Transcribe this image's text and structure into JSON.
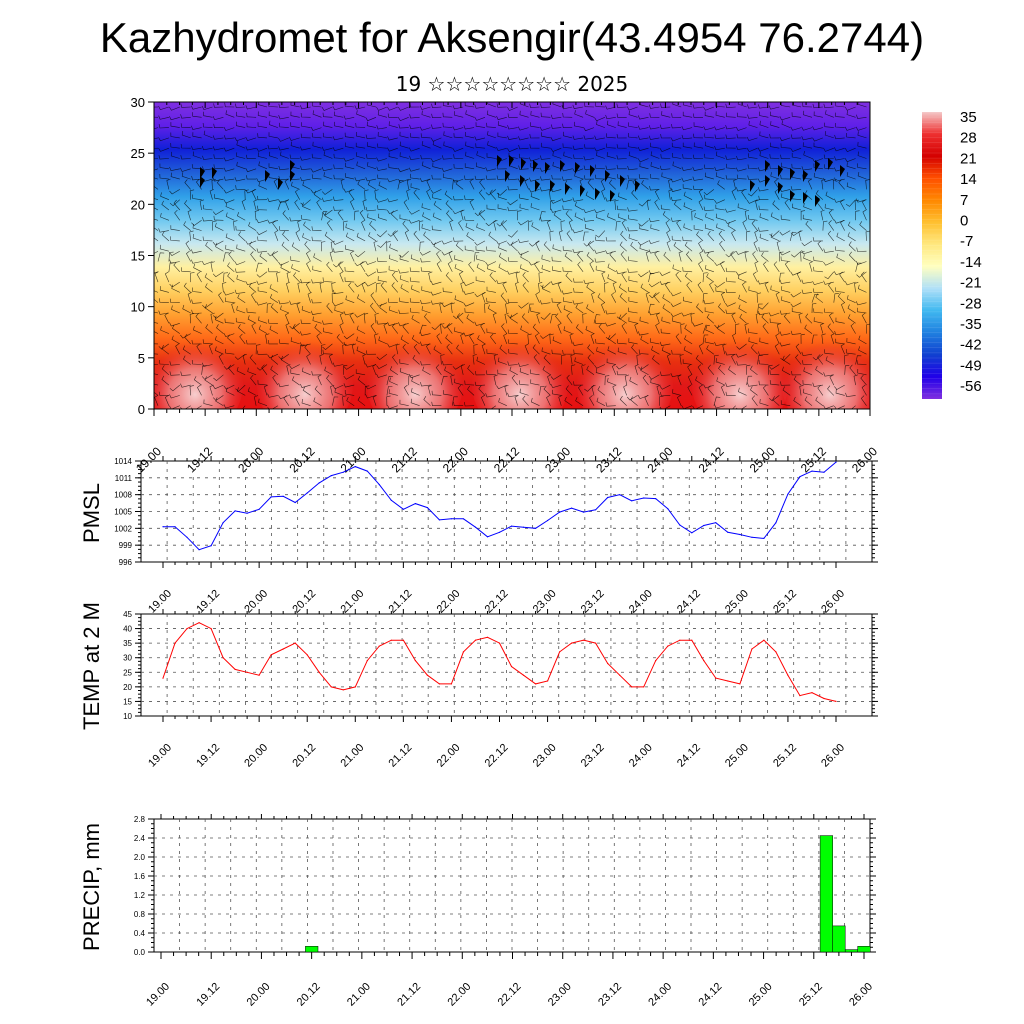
{
  "page": {
    "title": "Kazhydromet for Aksengir(43.4954 76.2744)",
    "subtitle": "19 ☆☆☆☆☆☆☆☆ 2025"
  },
  "time_labels": [
    "19.00",
    "19.12",
    "20.00",
    "20.12",
    "21.00",
    "21.12",
    "22.00",
    "22.12",
    "23.00",
    "23.12",
    "24.00",
    "24.12",
    "25.00",
    "25.12",
    "26.00"
  ],
  "chart_data": [
    {
      "type": "heatmap",
      "description_key": "cross-section",
      "y_ticks": [
        "0",
        "5",
        "10",
        "15",
        "20",
        "25",
        "30"
      ],
      "ylim": [
        0,
        30
      ],
      "colorbar": {
        "labels": [
          "35",
          "28",
          "21",
          "14",
          "7",
          "0",
          "-7",
          "-14",
          "-21",
          "-28",
          "-35",
          "-42",
          "-49",
          "-56"
        ],
        "colors": [
          "#f4c8c8",
          "#ee3030",
          "#d40000",
          "#ff5000",
          "#ff8800",
          "#ffc030",
          "#ffe880",
          "#ffffc0",
          "#b0e0f8",
          "#40b8f0",
          "#2080e0",
          "#1040d0",
          "#2000e8",
          "#8030e0"
        ]
      },
      "layer_colors": [
        "#e81010",
        "#e01818",
        "#e83010",
        "#ff6a18",
        "#ffa030",
        "#ffd060",
        "#fff0a0",
        "#c8e8f0",
        "#70c8f0",
        "#30a0e8",
        "#2060d8",
        "#1020d8",
        "#6020e8",
        "#8030e0"
      ]
    },
    {
      "type": "line",
      "ylabel": "PMSL",
      "y_ticks": [
        "996",
        "999",
        "1002",
        "1005",
        "1008",
        "1011",
        "1014"
      ],
      "ylim": [
        996,
        1014
      ],
      "color": "#0000ff",
      "x_hours": [
        0,
        3,
        6,
        9,
        12,
        15,
        18,
        21,
        24,
        27,
        30,
        33,
        36,
        39,
        42,
        45,
        48,
        51,
        54,
        57,
        60,
        63,
        66,
        69,
        72,
        75,
        78,
        81,
        84,
        87,
        90,
        93,
        96,
        99,
        102,
        105,
        108,
        111,
        114,
        117,
        120,
        123,
        126,
        129,
        132,
        135,
        138,
        141,
        144,
        147,
        150,
        153,
        156,
        159,
        162,
        165,
        168
      ],
      "values": [
        1002.3,
        1002.3,
        1000.4,
        998.2,
        998.9,
        1003.0,
        1005.1,
        1004.7,
        1005.4,
        1007.6,
        1007.7,
        1006.6,
        1008.3,
        1010.1,
        1011.4,
        1012.0,
        1013.0,
        1012.2,
        1009.8,
        1007.0,
        1005.4,
        1006.4,
        1005.7,
        1003.5,
        1003.7,
        1003.7,
        1002.2,
        1000.5,
        1001.3,
        1002.4,
        1002.2,
        1002.0,
        1003.4,
        1004.9,
        1005.6,
        1004.9,
        1005.3,
        1007.5,
        1008.0,
        1006.9,
        1007.4,
        1007.3,
        1005.5,
        1002.6,
        1001.2,
        1002.5,
        1003.0,
        1001.3,
        1000.9,
        1000.4,
        1000.2,
        1003.0,
        1008.1,
        1011.2,
        1012.2,
        1012.0,
        1013.8
      ]
    },
    {
      "type": "line",
      "ylabel": "TEMP at 2 M",
      "y_ticks": [
        "10",
        "15",
        "20",
        "25",
        "30",
        "35",
        "40",
        "45"
      ],
      "ylim": [
        10,
        45
      ],
      "color": "#ff0000",
      "x_hours": [
        0,
        3,
        6,
        9,
        12,
        15,
        18,
        21,
        24,
        27,
        30,
        33,
        36,
        39,
        42,
        45,
        48,
        51,
        54,
        57,
        60,
        63,
        66,
        69,
        72,
        75,
        78,
        81,
        84,
        87,
        90,
        93,
        96,
        99,
        102,
        105,
        108,
        111,
        114,
        117,
        120,
        123,
        126,
        129,
        132,
        135,
        138,
        141,
        144,
        147,
        150,
        153,
        156,
        159,
        162,
        165,
        168
      ],
      "values": [
        23,
        35,
        40,
        42,
        40,
        30,
        26,
        25,
        24,
        31,
        33,
        35,
        31,
        25,
        20,
        19,
        20,
        29,
        34,
        36,
        36,
        29,
        24,
        21,
        21,
        32,
        36,
        37,
        35,
        27,
        24,
        21,
        22,
        32,
        35,
        36,
        35,
        28,
        24,
        20,
        20,
        29,
        34,
        36,
        36,
        29,
        23,
        22,
        21,
        33,
        36,
        32,
        24,
        17,
        18,
        16,
        15
      ]
    },
    {
      "type": "bar",
      "ylabel": "PRECIP, mm",
      "y_ticks": [
        "0.0",
        "0.4",
        "0.8",
        "1.2",
        "1.6",
        "2.0",
        "2.4",
        "2.8"
      ],
      "ylim": [
        0,
        2.8
      ],
      "color": "#00ff00",
      "x_hours": [
        36,
        159,
        162,
        165,
        168
      ],
      "values": [
        0.12,
        2.45,
        0.55,
        0.05,
        0.12
      ]
    }
  ]
}
